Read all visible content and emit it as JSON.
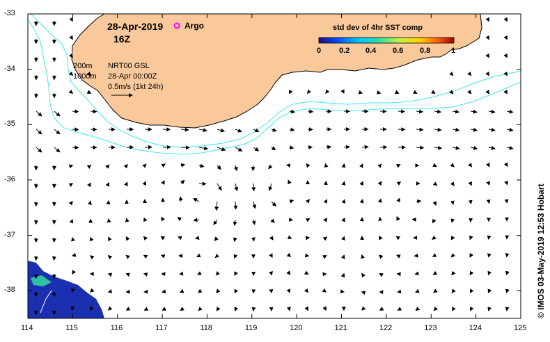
{
  "header": {
    "date": "28-Apr-2019",
    "hour": "16Z",
    "argo_label": "Argo"
  },
  "legend": {
    "isobath_200": "200m",
    "isobath_1000": "1000m",
    "product": "NRT00 GSL",
    "product_time": "28-Apr 00:00Z",
    "scale_label": "0.5m/s (1kt 24h)"
  },
  "colorbar": {
    "title": "std dev of 4hr SST comp",
    "ticks": [
      "0",
      "0.2",
      "0.4",
      "0.6",
      "0.8",
      "1"
    ],
    "colors": [
      "#1a0a8c",
      "#0055ff",
      "#00c8ff",
      "#30e0a0",
      "#c8f040",
      "#ffd000",
      "#ff6000",
      "#a00000"
    ]
  },
  "credit": "© IMOS 03-May-2019 12:53 Hobart",
  "axes": {
    "x_ticks": [
      "114",
      "115",
      "116",
      "117",
      "118",
      "119",
      "120",
      "121",
      "122",
      "123",
      "124",
      "125"
    ],
    "y_ticks": [
      "-33",
      "-34",
      "-35",
      "-36",
      "-37",
      "-38"
    ],
    "x_range": [
      114,
      125
    ],
    "y_range": [
      -38.5,
      -33
    ]
  },
  "colors": {
    "land": "#f9c89b",
    "isobath": "#3ce6f0",
    "argo": "#ff00ff",
    "sst_patch": "#1a30b0"
  }
}
